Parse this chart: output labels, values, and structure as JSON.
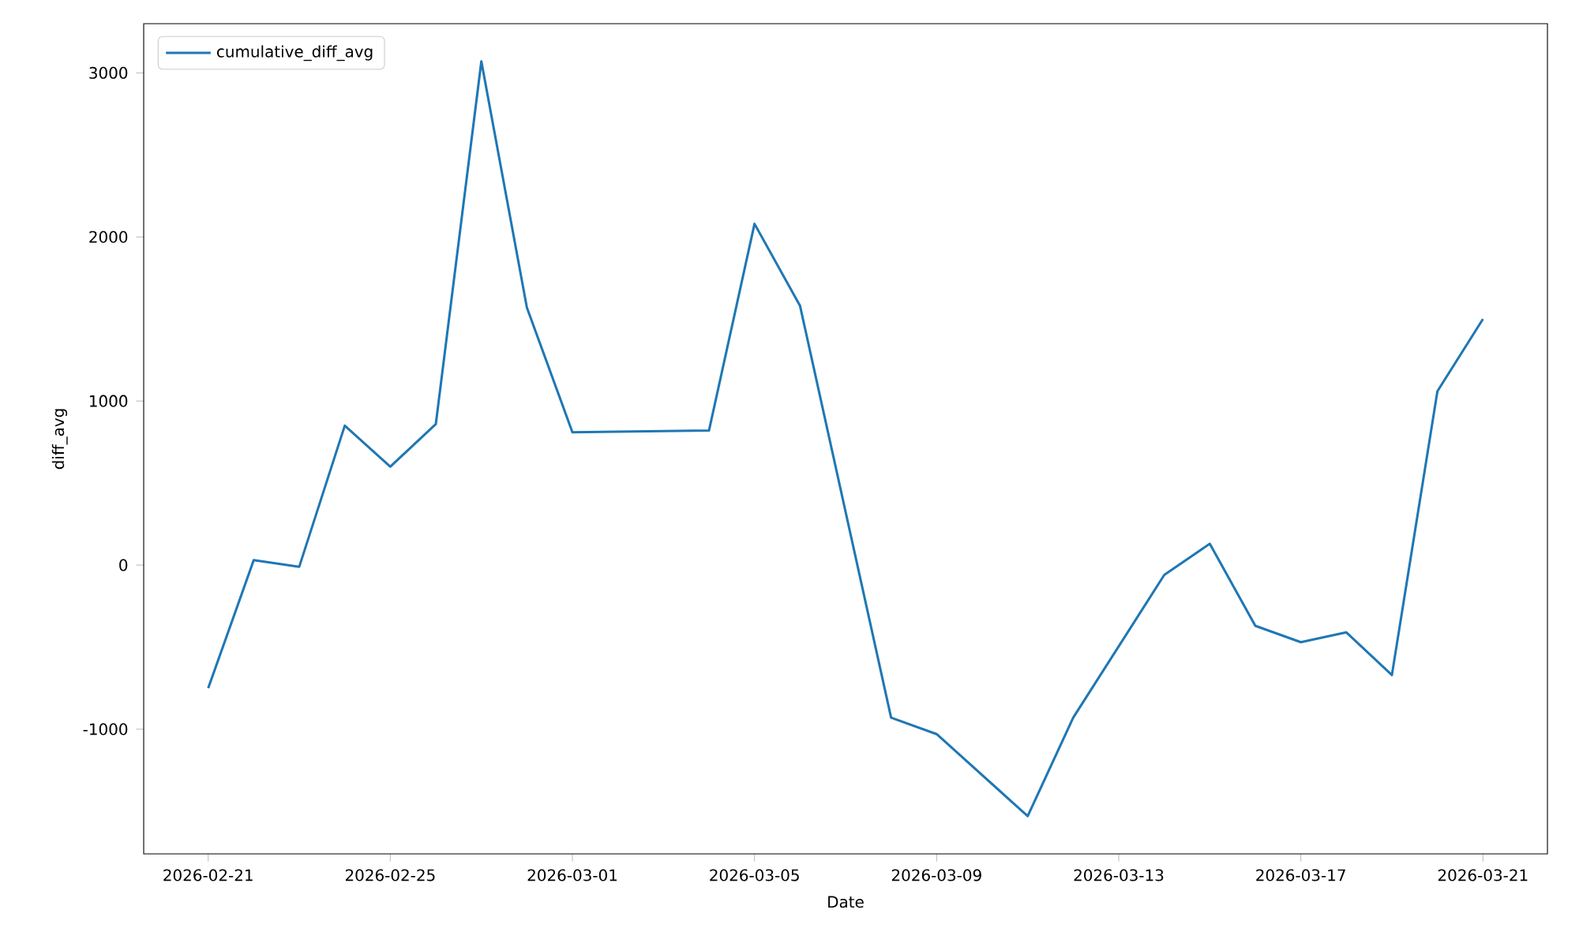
{
  "chart_data": {
    "type": "line",
    "xlabel": "Date",
    "ylabel": "diff_avg",
    "x": [
      "2026-02-21",
      "2026-02-22",
      "2026-02-23",
      "2026-02-24",
      "2026-02-25",
      "2026-02-26",
      "2026-02-27",
      "2026-02-28",
      "2026-03-01",
      "2026-03-04",
      "2026-03-05",
      "2026-03-06",
      "2026-03-08",
      "2026-03-09",
      "2026-03-11",
      "2026-03-12",
      "2026-03-14",
      "2026-03-15",
      "2026-03-16",
      "2026-03-17",
      "2026-03-18",
      "2026-03-19",
      "2026-03-20",
      "2026-03-21"
    ],
    "series": [
      {
        "name": "cumulative_diff_avg",
        "color": "#1f77b4",
        "values": [
          -750,
          30,
          -10,
          850,
          600,
          860,
          3070,
          1570,
          810,
          820,
          2080,
          1580,
          -930,
          -1030,
          -1530,
          -930,
          -60,
          130,
          -370,
          -470,
          -410,
          -670,
          1060,
          1500
        ]
      }
    ],
    "xlim": [
      "2026-02-19T14:00",
      "2026-03-22T10:00"
    ],
    "ylim": [
      -1760,
      3300
    ],
    "xticks": [
      "2026-02-21",
      "2026-02-25",
      "2026-03-01",
      "2026-03-05",
      "2026-03-09",
      "2026-03-13",
      "2026-03-17",
      "2026-03-21"
    ],
    "yticks": [
      -1000,
      0,
      1000,
      2000,
      3000
    ],
    "legend": "top left",
    "grid": false,
    "marker": "none",
    "line_style": "solid"
  }
}
